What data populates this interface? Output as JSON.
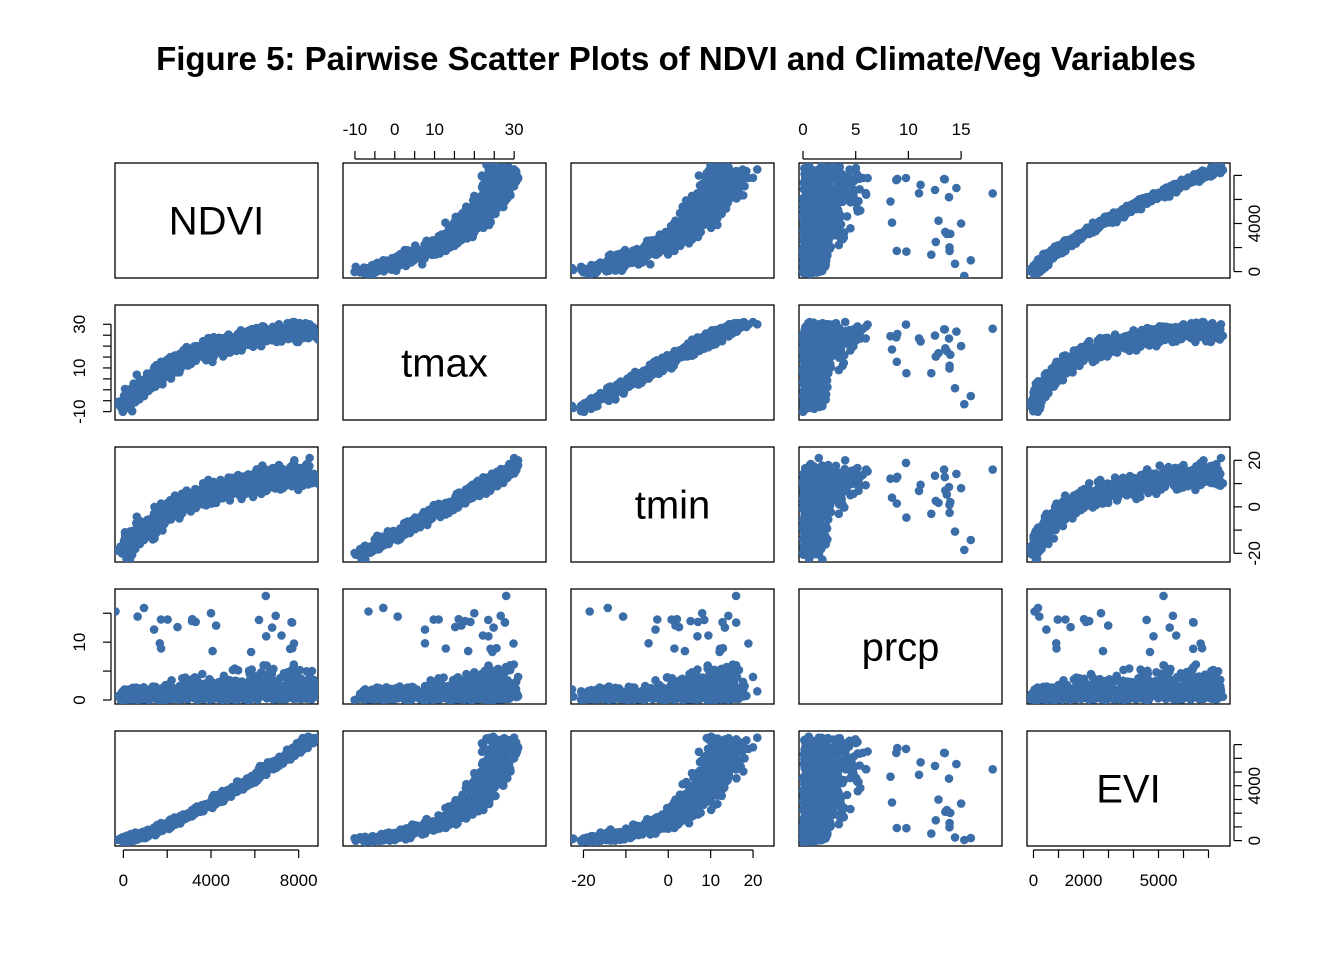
{
  "chart_data": {
    "type": "scatter-matrix",
    "title": "Figure 5: Pairwise Scatter Plots of NDVI and Climate/Veg Variables",
    "point_color": "#3b6ea8",
    "variables": [
      {
        "name": "NDVI",
        "range": [
          -200,
          8700
        ],
        "ticks": [
          0,
          2000,
          4000,
          6000,
          8000
        ],
        "tick_labels": [
          {
            "v": 0,
            "t": "0"
          },
          {
            "v": 4000,
            "t": "4000"
          },
          {
            "v": 8000,
            "t": "8000"
          }
        ]
      },
      {
        "name": "tmax",
        "range": [
          -12,
          37
        ],
        "ticks": [
          -10,
          -5,
          0,
          5,
          10,
          15,
          20,
          25,
          30
        ],
        "tick_labels": [
          {
            "v": -10,
            "t": "-10"
          },
          {
            "v": 0,
            "t": "0"
          },
          {
            "v": 10,
            "t": "10"
          },
          {
            "v": 30,
            "t": "30"
          }
        ]
      },
      {
        "name": "tmin",
        "range": [
          -22,
          24
        ],
        "ticks": [
          -20,
          -10,
          0,
          10,
          20
        ],
        "tick_labels": [
          {
            "v": -20,
            "t": "-20"
          },
          {
            "v": 0,
            "t": "0"
          },
          {
            "v": 10,
            "t": "10"
          },
          {
            "v": 20,
            "t": "20"
          }
        ]
      },
      {
        "name": "prcp",
        "range": [
          0,
          18.5
        ],
        "ticks": [
          0,
          5,
          10,
          15
        ],
        "tick_labels": [
          {
            "v": 0,
            "t": "0"
          },
          {
            "v": 5,
            "t": "5"
          },
          {
            "v": 10,
            "t": "10"
          },
          {
            "v": 15,
            "t": "15"
          }
        ]
      },
      {
        "name": "EVI",
        "range": [
          -100,
          7700
        ],
        "ticks": [
          0,
          1000,
          2000,
          3000,
          4000,
          5000,
          6000,
          7000
        ],
        "tick_labels": [
          {
            "v": 0,
            "t": "0"
          },
          {
            "v": 2000,
            "t": "2000"
          },
          {
            "v": 5000,
            "t": "5000"
          }
        ],
        "side_tick_labels": [
          {
            "v": 0,
            "t": "0"
          },
          {
            "v": 4000,
            "t": "4000"
          }
        ]
      }
    ],
    "ndvi_side_tick_labels": [
      {
        "v": 0,
        "t": "0"
      },
      {
        "v": 4000,
        "t": "4000"
      }
    ],
    "tmax_side_tick_labels": [
      {
        "v": -10,
        "t": "-10"
      },
      {
        "v": 10,
        "t": "10"
      },
      {
        "v": 30,
        "t": "30"
      }
    ],
    "tmin_side_tick_labels": [
      {
        "v": -20,
        "t": "-20"
      },
      {
        "v": 0,
        "t": "0"
      },
      {
        "v": 20,
        "t": "20"
      }
    ],
    "prcp_side_tick_labels": [
      {
        "v": 0,
        "t": "0"
      },
      {
        "v": 10,
        "t": "10"
      }
    ],
    "samples": [
      {
        "ndvi": 100,
        "tmax": -8,
        "tmin": -18,
        "prcp": 1.2,
        "evi": 30
      },
      {
        "ndvi": 800,
        "tmax": -3,
        "tmin": -13,
        "prcp": 0.5,
        "evi": 450
      },
      {
        "ndvi": 1500,
        "tmax": 3,
        "tmin": -8,
        "prcp": 2.1,
        "evi": 800
      },
      {
        "ndvi": 2200,
        "tmax": 9,
        "tmin": -3,
        "prcp": 3.4,
        "evi": 1200
      },
      {
        "ndvi": 2900,
        "tmax": 14,
        "tmin": 1,
        "prcp": 1.8,
        "evi": 1700
      },
      {
        "ndvi": 3600,
        "tmax": 18,
        "tmin": 5,
        "prcp": 4.5,
        "evi": 2300
      },
      {
        "ndvi": 4300,
        "tmax": 21,
        "tmin": 8,
        "prcp": 2.9,
        "evi": 2900
      },
      {
        "ndvi": 5000,
        "tmax": 24,
        "tmin": 11,
        "prcp": 5.2,
        "evi": 3600
      },
      {
        "ndvi": 5700,
        "tmax": 27,
        "tmin": 14,
        "prcp": 3.1,
        "evi": 4400
      },
      {
        "ndvi": 6400,
        "tmax": 29,
        "tmin": 16,
        "prcp": 6.0,
        "evi": 5200
      },
      {
        "ndvi": 7100,
        "tmax": 30,
        "tmin": 18,
        "prcp": 2.4,
        "evi": 6000
      },
      {
        "ndvi": 7800,
        "tmax": 31,
        "tmin": 20,
        "prcp": 4.0,
        "evi": 6800
      },
      {
        "ndvi": 8500,
        "tmax": 30,
        "tmin": 21,
        "prcp": 1.5,
        "evi": 7500
      },
      {
        "ndvi": 4000,
        "tmax": 20,
        "tmin": 8,
        "prcp": 15,
        "evi": 2700
      },
      {
        "ndvi": 6500,
        "tmax": 28,
        "tmin": 16,
        "prcp": 18,
        "evi": 5200
      },
      {
        "ndvi": 3300,
        "tmax": 19,
        "tmin": 7,
        "prcp": 13.5,
        "evi": 2100
      }
    ]
  }
}
